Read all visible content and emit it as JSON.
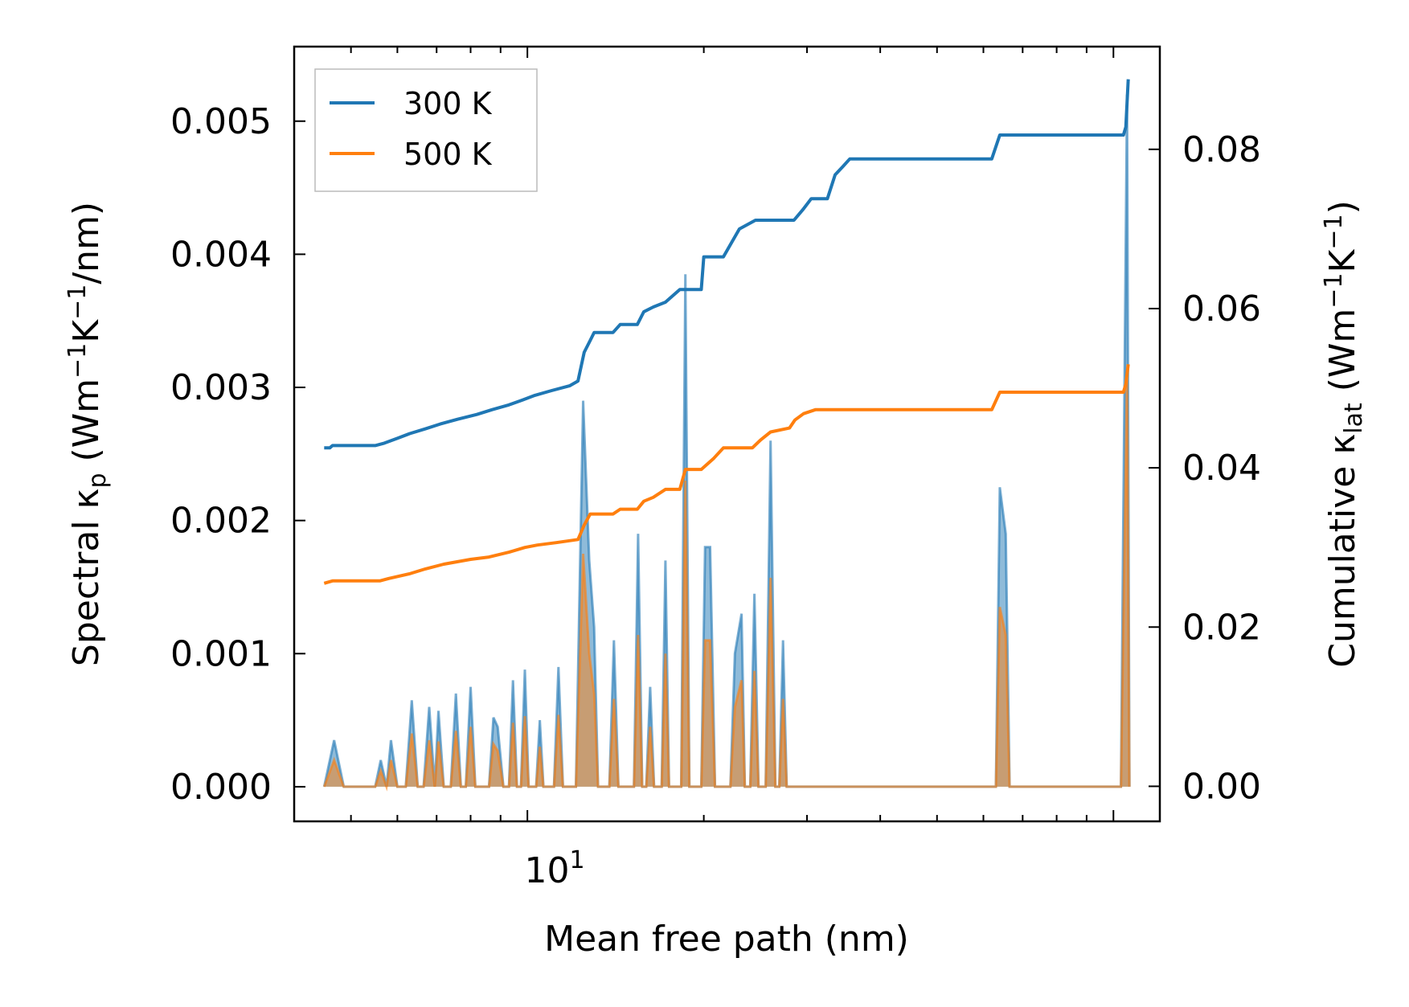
{
  "chart_data": {
    "type": "line",
    "title": "",
    "xlabel": "Mean free path (nm)",
    "xscale": "log",
    "xlim": [
      4.0,
      120.0
    ],
    "x_major_tick_label": {
      "value": 10,
      "base": "10",
      "exponent": "1"
    },
    "y_left": {
      "label": {
        "main": "Spectral κ",
        "sub": "p",
        "unit_open": " (Wm",
        "sup1": "−1",
        "mid": "K",
        "sup2": "−1",
        "unit_close": "/nm)"
      },
      "ylim": [
        -0.00026,
        0.00556
      ],
      "ticks": [
        0.0,
        0.001,
        0.002,
        0.003,
        0.004,
        0.005
      ],
      "tick_labels": [
        "0.000",
        "0.001",
        "0.002",
        "0.003",
        "0.004",
        "0.005"
      ]
    },
    "y_right": {
      "label": {
        "main": "Cumulative κ",
        "sub": "lat",
        "unit_open": " (Wm",
        "sup1": "−1",
        "mid": "K",
        "sup2": "−1",
        "unit_close": ")"
      },
      "ylim": [
        -0.0044,
        0.0929
      ],
      "ticks": [
        0.0,
        0.02,
        0.04,
        0.06,
        0.08
      ],
      "tick_labels": [
        "0.00",
        "0.02",
        "0.04",
        "0.06",
        "0.08"
      ]
    },
    "legend": {
      "position": "top-left",
      "entries": [
        {
          "name": "300 K",
          "color": "#1f77b4"
        },
        {
          "name": "500 K",
          "color": "#ff7f0e"
        }
      ]
    },
    "series": [
      {
        "name": "300 K",
        "color": "#1f77b4",
        "cumulative": [
          [
            4.5,
            0.0425
          ],
          [
            4.6,
            0.0425
          ],
          [
            4.65,
            0.0428
          ],
          [
            5.5,
            0.0428
          ],
          [
            5.7,
            0.0431
          ],
          [
            6.0,
            0.0437
          ],
          [
            6.3,
            0.0443
          ],
          [
            6.7,
            0.0449
          ],
          [
            7.1,
            0.0455
          ],
          [
            7.6,
            0.0461
          ],
          [
            8.2,
            0.0467
          ],
          [
            8.7,
            0.0473
          ],
          [
            9.3,
            0.0479
          ],
          [
            9.8,
            0.0485
          ],
          [
            10.3,
            0.0491
          ],
          [
            11.0,
            0.0497
          ],
          [
            11.8,
            0.0503
          ],
          [
            12.2,
            0.0509
          ],
          [
            12.5,
            0.0545
          ],
          [
            12.8,
            0.056
          ],
          [
            13.0,
            0.057
          ],
          [
            14.0,
            0.057
          ],
          [
            14.4,
            0.058
          ],
          [
            15.4,
            0.058
          ],
          [
            15.8,
            0.0596
          ],
          [
            16.4,
            0.0602
          ],
          [
            17.2,
            0.0608
          ],
          [
            18.2,
            0.0624
          ],
          [
            19.8,
            0.0624
          ],
          [
            20.0,
            0.0665
          ],
          [
            21.6,
            0.0665
          ],
          [
            23.0,
            0.07
          ],
          [
            24.5,
            0.0711
          ],
          [
            28.5,
            0.0711
          ],
          [
            29.5,
            0.0724
          ],
          [
            30.5,
            0.0738
          ],
          [
            32.5,
            0.0738
          ],
          [
            33.5,
            0.0768
          ],
          [
            34.5,
            0.0778
          ],
          [
            35.5,
            0.0788
          ],
          [
            62.0,
            0.0788
          ],
          [
            64.0,
            0.0818
          ],
          [
            104.0,
            0.0818
          ],
          [
            105.0,
            0.0828
          ],
          [
            106.0,
            0.0888
          ]
        ],
        "spectral": [
          [
            4.5,
            0
          ],
          [
            4.68,
            0.00035
          ],
          [
            4.86,
            0
          ],
          [
            5.5,
            0
          ],
          [
            5.62,
            0.0002
          ],
          [
            5.75,
            0
          ],
          [
            5.85,
            0.00035
          ],
          [
            6.0,
            0
          ],
          [
            6.2,
            0
          ],
          [
            6.35,
            0.00065
          ],
          [
            6.5,
            0
          ],
          [
            6.65,
            0
          ],
          [
            6.8,
            0.0006
          ],
          [
            6.95,
            0
          ],
          [
            7.05,
            0.00057
          ],
          [
            7.2,
            0
          ],
          [
            7.4,
            0
          ],
          [
            7.55,
            0.0007
          ],
          [
            7.7,
            0
          ],
          [
            7.85,
            0
          ],
          [
            8.0,
            0.00075
          ],
          [
            8.15,
            0
          ],
          [
            8.6,
            0
          ],
          [
            8.75,
            0.00052
          ],
          [
            8.9,
            0.00045
          ],
          [
            9.1,
            0
          ],
          [
            9.3,
            0
          ],
          [
            9.45,
            0.0008
          ],
          [
            9.6,
            0
          ],
          [
            9.75,
            0
          ],
          [
            9.9,
            0.00088
          ],
          [
            10.05,
            0
          ],
          [
            10.35,
            0
          ],
          [
            10.5,
            0.0005
          ],
          [
            10.65,
            0
          ],
          [
            11.1,
            0
          ],
          [
            11.3,
            0.0009
          ],
          [
            11.5,
            0
          ],
          [
            12.1,
            0
          ],
          [
            12.45,
            0.0029
          ],
          [
            12.75,
            0.0017
          ],
          [
            13.0,
            0.0012
          ],
          [
            13.2,
            0
          ],
          [
            13.8,
            0
          ],
          [
            14.05,
            0.0011
          ],
          [
            14.3,
            0
          ],
          [
            15.2,
            0
          ],
          [
            15.45,
            0.0019
          ],
          [
            15.7,
            0
          ],
          [
            15.95,
            0
          ],
          [
            16.2,
            0.00075
          ],
          [
            16.45,
            0
          ],
          [
            16.95,
            0
          ],
          [
            17.2,
            0.0017
          ],
          [
            17.45,
            0
          ],
          [
            18.3,
            0
          ],
          [
            18.6,
            0.00385
          ],
          [
            18.9,
            0
          ],
          [
            19.8,
            0
          ],
          [
            20.1,
            0.0018
          ],
          [
            20.5,
            0.0018
          ],
          [
            20.9,
            0
          ],
          [
            22.2,
            0
          ],
          [
            22.6,
            0.001
          ],
          [
            23.2,
            0.0013
          ],
          [
            23.5,
            0
          ],
          [
            24.0,
            0
          ],
          [
            24.4,
            0.00145
          ],
          [
            24.8,
            0
          ],
          [
            25.5,
            0
          ],
          [
            26.0,
            0.0026
          ],
          [
            26.5,
            0
          ],
          [
            26.9,
            0
          ],
          [
            27.3,
            0.0011
          ],
          [
            27.7,
            0
          ],
          [
            63.0,
            0
          ],
          [
            64.0,
            0.00225
          ],
          [
            65.5,
            0.0019
          ],
          [
            66.5,
            0
          ],
          [
            103.0,
            0
          ],
          [
            105.5,
            0.0052
          ],
          [
            106.5,
            0
          ]
        ]
      },
      {
        "name": "500 K",
        "color": "#ff7f0e",
        "cumulative": [
          [
            4.5,
            0.0255
          ],
          [
            4.65,
            0.0258
          ],
          [
            5.6,
            0.0258
          ],
          [
            5.8,
            0.0261
          ],
          [
            6.3,
            0.0267
          ],
          [
            6.7,
            0.0273
          ],
          [
            7.2,
            0.0279
          ],
          [
            8.0,
            0.0285
          ],
          [
            8.6,
            0.0288
          ],
          [
            9.3,
            0.0294
          ],
          [
            9.9,
            0.03
          ],
          [
            10.4,
            0.0303
          ],
          [
            11.2,
            0.0306
          ],
          [
            12.2,
            0.031
          ],
          [
            12.5,
            0.0328
          ],
          [
            12.8,
            0.0342
          ],
          [
            14.0,
            0.0342
          ],
          [
            14.4,
            0.0348
          ],
          [
            15.4,
            0.0348
          ],
          [
            15.8,
            0.0358
          ],
          [
            16.4,
            0.0363
          ],
          [
            17.2,
            0.0373
          ],
          [
            18.2,
            0.0373
          ],
          [
            18.6,
            0.0398
          ],
          [
            19.8,
            0.0398
          ],
          [
            20.8,
            0.0412
          ],
          [
            21.6,
            0.0425
          ],
          [
            24.2,
            0.0425
          ],
          [
            25.0,
            0.0435
          ],
          [
            26.0,
            0.0445
          ],
          [
            28.0,
            0.045
          ],
          [
            28.6,
            0.046
          ],
          [
            29.6,
            0.0468
          ],
          [
            31.0,
            0.0473
          ],
          [
            62.0,
            0.0473
          ],
          [
            64.0,
            0.0495
          ],
          [
            104.0,
            0.0495
          ],
          [
            105.0,
            0.0505
          ],
          [
            106.0,
            0.053
          ]
        ],
        "spectral": [
          [
            4.5,
            0
          ],
          [
            4.68,
            0.0002
          ],
          [
            4.86,
            0
          ],
          [
            5.5,
            0
          ],
          [
            5.62,
            0.00012
          ],
          [
            5.75,
            0
          ],
          [
            5.85,
            0.0002
          ],
          [
            6.0,
            0
          ],
          [
            6.2,
            0
          ],
          [
            6.35,
            0.0004
          ],
          [
            6.5,
            0
          ],
          [
            6.65,
            0
          ],
          [
            6.8,
            0.00035
          ],
          [
            6.95,
            0
          ],
          [
            7.05,
            0.00034
          ],
          [
            7.2,
            0
          ],
          [
            7.4,
            0
          ],
          [
            7.55,
            0.00042
          ],
          [
            7.7,
            0
          ],
          [
            7.85,
            0
          ],
          [
            8.0,
            0.00045
          ],
          [
            8.15,
            0
          ],
          [
            8.6,
            0
          ],
          [
            8.75,
            0.00032
          ],
          [
            8.9,
            0.00027
          ],
          [
            9.1,
            0
          ],
          [
            9.3,
            0
          ],
          [
            9.45,
            0.00048
          ],
          [
            9.6,
            0
          ],
          [
            9.75,
            0
          ],
          [
            9.9,
            0.00053
          ],
          [
            10.05,
            0
          ],
          [
            10.35,
            0
          ],
          [
            10.5,
            0.0003
          ],
          [
            10.65,
            0
          ],
          [
            11.1,
            0
          ],
          [
            11.3,
            0.00054
          ],
          [
            11.5,
            0
          ],
          [
            12.1,
            0
          ],
          [
            12.45,
            0.00175
          ],
          [
            12.75,
            0.001
          ],
          [
            13.0,
            0.0007
          ],
          [
            13.2,
            0
          ],
          [
            13.8,
            0
          ],
          [
            14.05,
            0.00066
          ],
          [
            14.3,
            0
          ],
          [
            15.2,
            0
          ],
          [
            15.45,
            0.00114
          ],
          [
            15.7,
            0
          ],
          [
            15.95,
            0
          ],
          [
            16.2,
            0.00045
          ],
          [
            16.45,
            0
          ],
          [
            16.95,
            0
          ],
          [
            17.2,
            0.001
          ],
          [
            17.45,
            0
          ],
          [
            18.3,
            0
          ],
          [
            18.6,
            0.0023
          ],
          [
            18.9,
            0
          ],
          [
            19.8,
            0
          ],
          [
            20.1,
            0.0011
          ],
          [
            20.5,
            0.0011
          ],
          [
            20.9,
            0
          ],
          [
            22.2,
            0
          ],
          [
            22.6,
            0.0006
          ],
          [
            23.2,
            0.0008
          ],
          [
            23.5,
            0
          ],
          [
            24.0,
            0
          ],
          [
            24.4,
            0.00087
          ],
          [
            24.8,
            0
          ],
          [
            25.5,
            0
          ],
          [
            26.0,
            0.00157
          ],
          [
            26.5,
            0
          ],
          [
            26.9,
            0
          ],
          [
            27.3,
            0.00066
          ],
          [
            27.7,
            0
          ],
          [
            63.0,
            0
          ],
          [
            64.0,
            0.00135
          ],
          [
            65.5,
            0.00114
          ],
          [
            66.5,
            0
          ],
          [
            103.0,
            0
          ],
          [
            105.5,
            0.0031
          ],
          [
            106.5,
            0
          ]
        ]
      }
    ]
  }
}
